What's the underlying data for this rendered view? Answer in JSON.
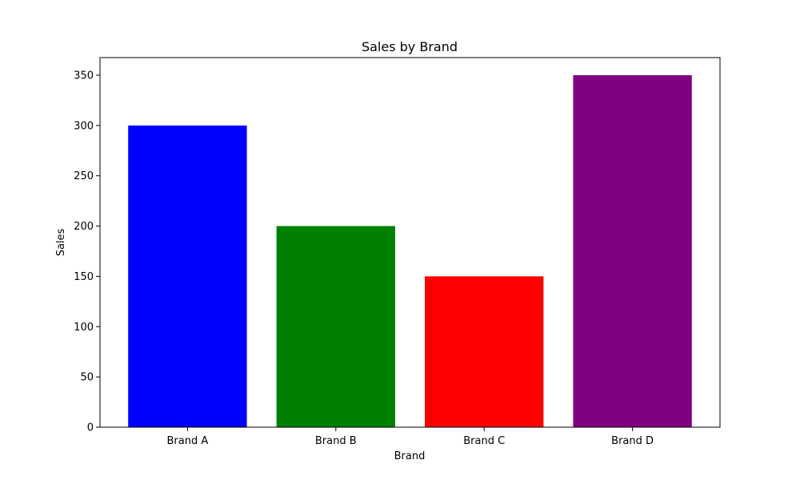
{
  "chart_data": {
    "type": "bar",
    "title": "Sales by Brand",
    "xlabel": "Brand",
    "ylabel": "Sales",
    "categories": [
      "Brand A",
      "Brand B",
      "Brand C",
      "Brand D"
    ],
    "values": [
      300,
      200,
      150,
      350
    ],
    "colors": [
      "#0000ff",
      "#008000",
      "#ff0000",
      "#800080"
    ],
    "ylim": [
      0,
      367.5
    ],
    "yticks": [
      0,
      50,
      100,
      150,
      200,
      250,
      300,
      350
    ],
    "grid": false,
    "legend": "none"
  }
}
